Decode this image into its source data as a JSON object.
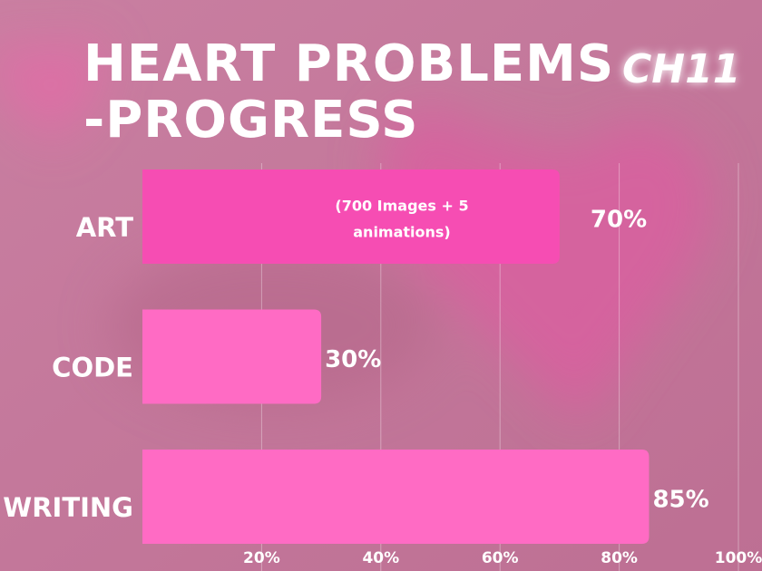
{
  "chart_data": {
    "type": "hbar",
    "title": [
      "HEART PROBLEMS",
      "-PROGRESS"
    ],
    "subtitle": "CH11",
    "categories": [
      "ART",
      "CODE",
      "WRITING"
    ],
    "values": [
      70,
      30,
      85
    ],
    "value_labels": [
      "70%",
      "30%",
      "85%"
    ],
    "colors": [
      "#f64db3",
      "#ff6bc4",
      "#ff6bc4"
    ],
    "annotation": [
      "(700 Images + 5",
      "animations)"
    ],
    "xlim": [
      0,
      100
    ],
    "xticks": [
      {
        "value": 20,
        "label": "20%"
      },
      {
        "value": 40,
        "label": "40%"
      },
      {
        "value": 60,
        "label": "60%"
      },
      {
        "value": 80,
        "label": "80%"
      },
      {
        "value": 100,
        "label": "100%"
      }
    ],
    "grid": true
  }
}
